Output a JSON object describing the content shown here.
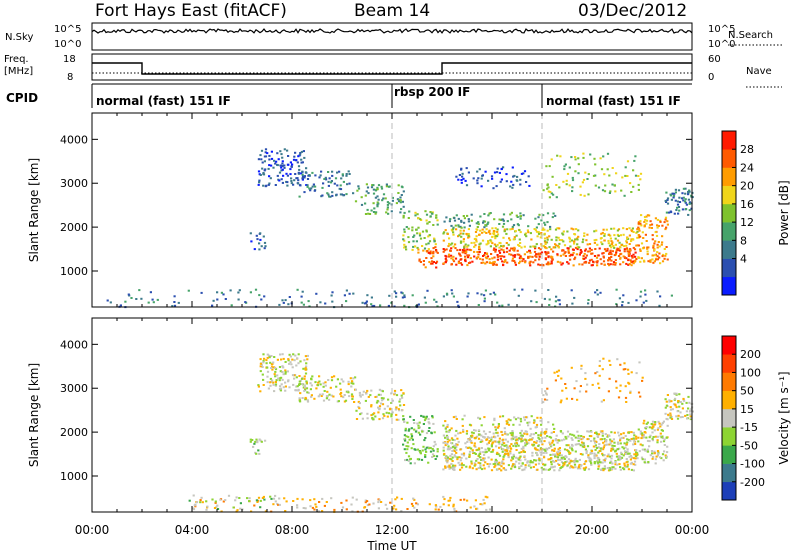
{
  "header": {
    "radar": "Fort Hays East (fitACF)",
    "beam": "Beam 14",
    "date": "03/Dec/2012"
  },
  "noise_panel": {
    "left_label": "N.Sky",
    "right_label": "N.Search",
    "left_ticks": [
      "10^5",
      "10^0"
    ],
    "right_ticks": [
      "10^5",
      "10^0"
    ]
  },
  "freq_panel": {
    "left_label_top": "Freq.",
    "left_label_bottom": "[MHz]",
    "right_label": "Nave",
    "left_ticks": [
      "18",
      "8"
    ],
    "right_ticks": [
      "60",
      "0"
    ]
  },
  "cpid": {
    "label": "CPID",
    "segments": [
      {
        "start_h": 0,
        "end_h": 12,
        "label": "normal (fast) 151 IF"
      },
      {
        "start_h": 12,
        "end_h": 18,
        "label": "rbsp 200 IF"
      },
      {
        "start_h": 18,
        "end_h": 24,
        "label": "normal (fast) 151 IF"
      }
    ]
  },
  "chart_data": [
    {
      "type": "heatmap",
      "name": "power",
      "ylabel": "Slant Range [km]",
      "ylim": [
        180,
        4600
      ],
      "yticks": [
        1000,
        2000,
        3000,
        4000
      ],
      "colorbar_label": "Power [dB]",
      "colorbar_ticks": [
        "28",
        "24",
        "20",
        "16",
        "12",
        "8",
        "4"
      ],
      "colors": [
        "#0a1cff",
        "#2b4fb0",
        "#3c7a8c",
        "#46a36a",
        "#7ec22d",
        "#f0d51a",
        "#ff9c00",
        "#ff5a00",
        "#ff1a00"
      ],
      "scatter_regions": [
        {
          "x": [
            6.6,
            8.6
          ],
          "y": [
            2950,
            3800
          ],
          "level": 1,
          "density": 0.45
        },
        {
          "x": [
            8.2,
            10.5
          ],
          "y": [
            2700,
            3300
          ],
          "level": 2,
          "density": 0.35
        },
        {
          "x": [
            6.3,
            6.9
          ],
          "y": [
            1500,
            1900
          ],
          "level": 1,
          "density": 0.4
        },
        {
          "x": [
            10.5,
            12.5
          ],
          "y": [
            2300,
            3000
          ],
          "level": 3,
          "density": 0.35
        },
        {
          "x": [
            12.4,
            13.8
          ],
          "y": [
            1500,
            2400
          ],
          "level": 4,
          "density": 0.4
        },
        {
          "x": [
            13.0,
            13.8
          ],
          "y": [
            1100,
            1600
          ],
          "level": 7,
          "density": 0.55
        },
        {
          "x": [
            14.0,
            21.8
          ],
          "y": [
            1150,
            1550
          ],
          "level": 7,
          "density": 0.8
        },
        {
          "x": [
            14.0,
            21.8
          ],
          "y": [
            1550,
            2000
          ],
          "level": 5,
          "density": 0.55
        },
        {
          "x": [
            14.0,
            18.5
          ],
          "y": [
            2000,
            2350
          ],
          "level": 3,
          "density": 0.35
        },
        {
          "x": [
            21.8,
            23.0
          ],
          "y": [
            1200,
            2300
          ],
          "level": 6,
          "density": 0.55
        },
        {
          "x": [
            22.9,
            24.0
          ],
          "y": [
            2300,
            2900
          ],
          "level": 2,
          "density": 0.6
        },
        {
          "x": [
            14.5,
            17.5
          ],
          "y": [
            2900,
            3400
          ],
          "level": 1,
          "density": 0.25
        },
        {
          "x": [
            18.0,
            22.0
          ],
          "y": [
            2700,
            3700
          ],
          "level": 4,
          "density": 0.15
        },
        {
          "x": [
            0.5,
            23.5
          ],
          "y": [
            200,
            600
          ],
          "level": 2,
          "density": 0.12
        }
      ]
    },
    {
      "type": "heatmap",
      "name": "velocity",
      "xlabel": "Time UT",
      "ylabel": "Slant Range [km]",
      "ylim": [
        180,
        4600
      ],
      "yticks": [
        1000,
        2000,
        3000,
        4000
      ],
      "xlim": [
        0,
        24
      ],
      "xticks": [
        "00:00",
        "04:00",
        "08:00",
        "12:00",
        "16:00",
        "20:00",
        "00:00"
      ],
      "colorbar_label": "Velocity [m s⁻¹]",
      "colorbar_ticks": [
        "200",
        "100",
        "50",
        "15",
        "-15",
        "-50",
        "-100",
        "-200"
      ],
      "colors": [
        "#1d3fb8",
        "#3c7a8c",
        "#3aa84a",
        "#8dd433",
        "#c6c6bf",
        "#ffb000",
        "#ff7a00",
        "#ff4000",
        "#ff0000"
      ],
      "scatter_regions": [
        {
          "x": [
            6.6,
            8.6
          ],
          "y": [
            2950,
            3800
          ],
          "level": 4,
          "density": 0.55
        },
        {
          "x": [
            8.2,
            10.5
          ],
          "y": [
            2700,
            3300
          ],
          "level": 4,
          "density": 0.45
        },
        {
          "x": [
            6.3,
            6.9
          ],
          "y": [
            1500,
            1900
          ],
          "level": 3,
          "density": 0.45
        },
        {
          "x": [
            10.5,
            12.5
          ],
          "y": [
            2300,
            3000
          ],
          "level": 4,
          "density": 0.45
        },
        {
          "x": [
            12.4,
            13.8
          ],
          "y": [
            1300,
            2400
          ],
          "level": 3,
          "density": 0.45
        },
        {
          "x": [
            14.0,
            21.8
          ],
          "y": [
            1150,
            2050
          ],
          "level": 4,
          "density": 0.85
        },
        {
          "x": [
            14.0,
            18.5
          ],
          "y": [
            2050,
            2400
          ],
          "level": 4,
          "density": 0.3
        },
        {
          "x": [
            21.8,
            23.0
          ],
          "y": [
            1300,
            2300
          ],
          "level": 4,
          "density": 0.6
        },
        {
          "x": [
            22.9,
            24.0
          ],
          "y": [
            2300,
            2900
          ],
          "level": 4,
          "density": 0.7
        },
        {
          "x": [
            18.0,
            22.0
          ],
          "y": [
            2700,
            3700
          ],
          "level": 5,
          "density": 0.12
        },
        {
          "x": [
            4.0,
            16.0
          ],
          "y": [
            200,
            550
          ],
          "level": 5,
          "density": 0.22
        },
        {
          "x": [
            3.5,
            7.5
          ],
          "y": [
            250,
            600
          ],
          "level": 3,
          "density": 0.12
        }
      ]
    }
  ]
}
